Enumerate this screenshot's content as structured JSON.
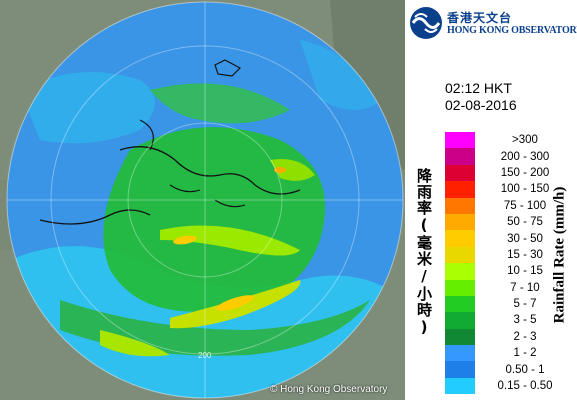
{
  "header": {
    "org_name_zh": "香港天文台",
    "org_name_en": "HONG KONG OBSERVATORY"
  },
  "timestamp": {
    "time": "02:12 HKT",
    "date": "02-08-2016"
  },
  "legend": {
    "title_zh": "降雨率(毫米/小時)",
    "title_en": "Rainfall Rate (mm/h)",
    "bins": [
      {
        "label": ">300",
        "color": "#ff00ff"
      },
      {
        "label": "200 - 300",
        "color": "#cc0088"
      },
      {
        "label": "150 - 200",
        "color": "#dd0033"
      },
      {
        "label": "100 - 150",
        "color": "#ff2000"
      },
      {
        "label": "75 - 100",
        "color": "#ff7700"
      },
      {
        "label": "50 - 75",
        "color": "#ffaa00"
      },
      {
        "label": "30 - 50",
        "color": "#ffcc00"
      },
      {
        "label": "15 - 30",
        "color": "#e8d800"
      },
      {
        "label": "10 - 15",
        "color": "#aaff00"
      },
      {
        "label": "7 - 10",
        "color": "#66ee00"
      },
      {
        "label": "5 - 7",
        "color": "#22cc22"
      },
      {
        "label": "3 - 5",
        "color": "#11aa33"
      },
      {
        "label": "2 - 3",
        "color": "#118833"
      },
      {
        "label": "1 - 2",
        "color": "#3399ff"
      },
      {
        "label": "0.50 - 1",
        "color": "#1f7fe8"
      },
      {
        "label": "0.15 - 0.50",
        "color": "#22ccff"
      }
    ]
  },
  "map": {
    "range_ring_label": "200",
    "copyright": "© Hong Kong Observatory"
  }
}
